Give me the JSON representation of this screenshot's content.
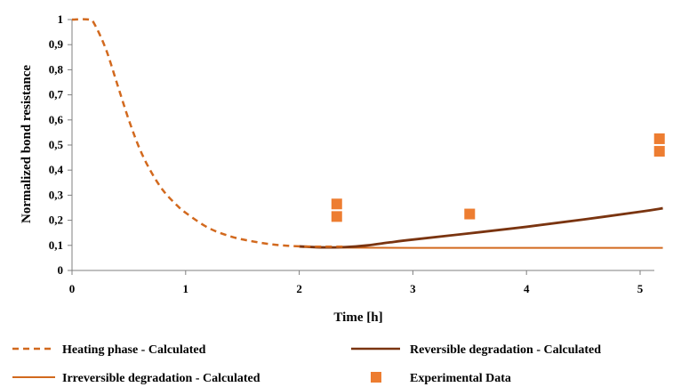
{
  "chart_data": {
    "type": "line",
    "title": "",
    "xlabel": "Time [h]",
    "ylabel": "Normalized bond resistance",
    "xlim": [
      0,
      5.2
    ],
    "ylim": [
      0,
      1
    ],
    "x_ticks": [
      0,
      1,
      2,
      3,
      4,
      5
    ],
    "x_tick_labels": [
      "0",
      "1",
      "2",
      "3",
      "4",
      "5"
    ],
    "y_ticks": [
      0,
      0.1,
      0.2,
      0.3,
      0.4,
      0.5,
      0.6,
      0.7,
      0.8,
      0.9,
      1
    ],
    "y_tick_labels": [
      "0",
      "0,1",
      "0,2",
      "0,3",
      "0,4",
      "0,5",
      "0,6",
      "0,7",
      "0,8",
      "0,9",
      "1"
    ],
    "grid": false,
    "legend_position": "bottom",
    "series": [
      {
        "name": "Heating phase - Calculated",
        "style": "dashed",
        "color": "#d2691e",
        "x": [
          0,
          0.15,
          0.2,
          0.3,
          0.4,
          0.5,
          0.6,
          0.7,
          0.8,
          0.9,
          1.0,
          1.2,
          1.4,
          1.6,
          1.8,
          2.0,
          2.2,
          2.4
        ],
        "y": [
          1.0,
          1.0,
          0.98,
          0.88,
          0.74,
          0.6,
          0.48,
          0.39,
          0.32,
          0.27,
          0.23,
          0.17,
          0.135,
          0.115,
          0.102,
          0.096,
          0.095,
          0.095
        ]
      },
      {
        "name": "Reversible degradation - Calculated",
        "style": "solid",
        "color": "#7a3410",
        "x": [
          2.0,
          2.2,
          2.4,
          2.6,
          2.8,
          3.0,
          3.5,
          4.0,
          4.5,
          5.0,
          5.2
        ],
        "y": [
          0.096,
          0.092,
          0.093,
          0.1,
          0.112,
          0.123,
          0.148,
          0.174,
          0.203,
          0.234,
          0.248
        ]
      },
      {
        "name": "Irreversible degradation - Calculated",
        "style": "solid",
        "color": "#d2691e",
        "x": [
          2.0,
          2.4,
          3.0,
          3.5,
          4.0,
          4.5,
          5.0,
          5.2
        ],
        "y": [
          0.094,
          0.091,
          0.09,
          0.09,
          0.09,
          0.09,
          0.09,
          0.09
        ]
      },
      {
        "name": "Experimental Data",
        "style": "markers",
        "color": "#ed7d31",
        "x": [
          2.33,
          2.33,
          3.5,
          5.17,
          5.17
        ],
        "y": [
          0.265,
          0.215,
          0.225,
          0.525,
          0.475
        ]
      }
    ]
  }
}
